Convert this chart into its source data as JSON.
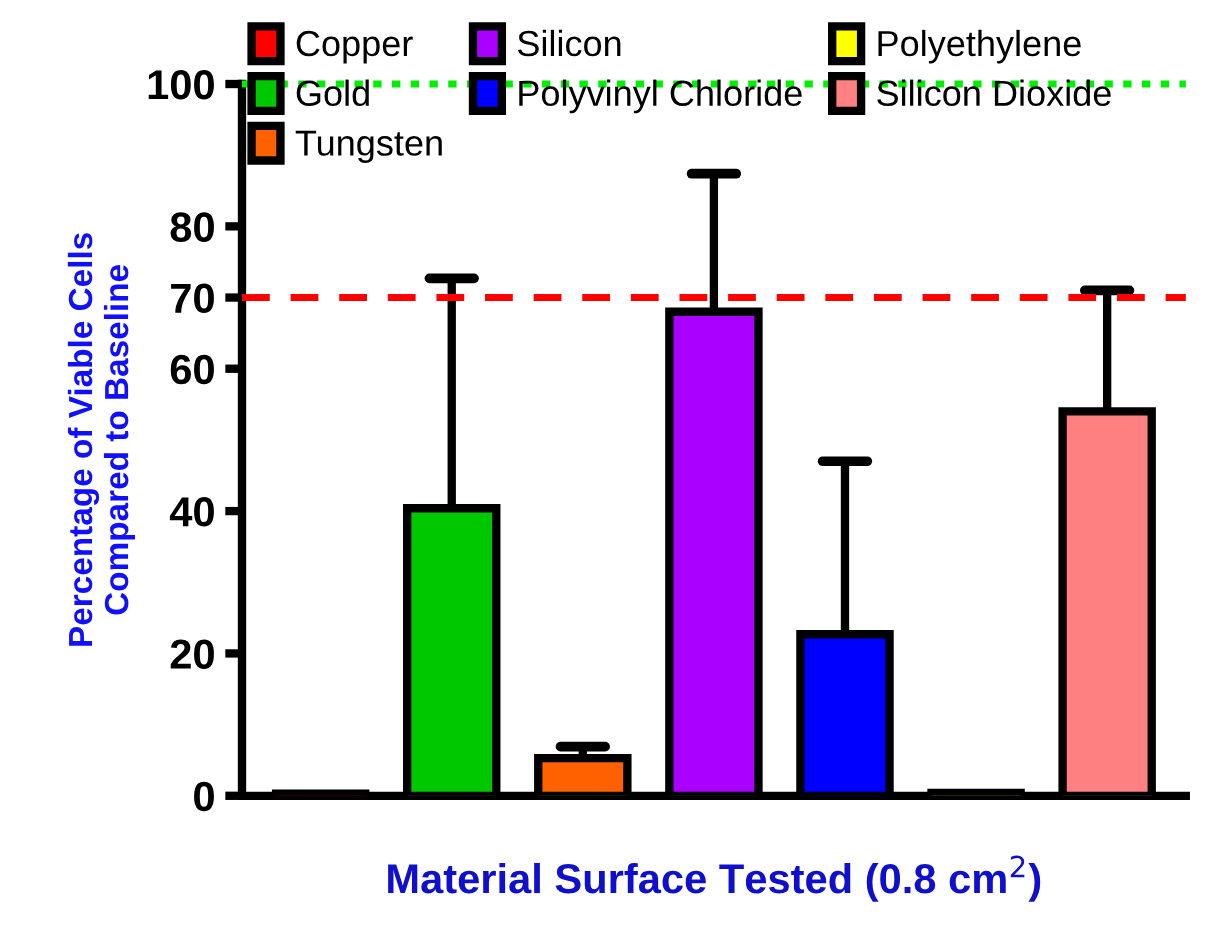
{
  "chart_data": {
    "type": "bar",
    "categories": [
      null,
      null,
      null,
      null,
      null,
      null,
      null
    ],
    "xlabel": "Material Surface Tested (0.8 cm$^{2}$)",
    "ylabel": "Percentage of Viable Cells\nCompared to Baseline",
    "ylim": [
      0,
      100
    ],
    "yticks": [
      0,
      20,
      40,
      60,
      70,
      80,
      100
    ],
    "series": [
      {
        "name": "Copper",
        "color": "#ff0000",
        "values": [
          0.3,
          null,
          null,
          null,
          null,
          null,
          null
        ],
        "errors": [
          null,
          null,
          null,
          null,
          null,
          null,
          null
        ]
      },
      {
        "name": "Gold",
        "color": "#00c800",
        "values": [
          null,
          40.4,
          null,
          null,
          null,
          null,
          null
        ],
        "errors": [
          null,
          [
            40.4,
            72.7
          ],
          null,
          null,
          null,
          null,
          null
        ]
      },
      {
        "name": "Tungsten",
        "color": "#ff6000",
        "values": [
          null,
          null,
          5.3,
          null,
          null,
          null,
          null
        ],
        "errors": [
          null,
          null,
          [
            5.3,
            6.9
          ],
          null,
          null,
          null,
          null
        ]
      },
      {
        "name": "Silicon",
        "color": "#aa00ff",
        "values": [
          null,
          null,
          null,
          68,
          null,
          null,
          null
        ],
        "errors": [
          null,
          null,
          null,
          [
            68,
            87.4
          ],
          null,
          null,
          null
        ]
      },
      {
        "name": "Polyvinyl Chloride",
        "color": "#0000ff",
        "values": [
          null,
          null,
          null,
          null,
          22.7,
          null,
          null
        ],
        "errors": [
          null,
          null,
          null,
          null,
          [
            22.7,
            47
          ],
          null,
          null
        ]
      },
      {
        "name": "Polyethylene",
        "color": "#ffff00",
        "values": [
          null,
          null,
          null,
          null,
          null,
          0.4,
          null
        ],
        "errors": [
          null,
          null,
          null,
          null,
          null,
          null,
          null
        ]
      },
      {
        "name": "Silicon Dioxide",
        "color": "#ff8080",
        "values": [
          null,
          null,
          null,
          null,
          null,
          null,
          54
        ],
        "errors": [
          null,
          null,
          null,
          null,
          null,
          null,
          [
            54,
            71
          ]
        ]
      }
    ],
    "ref_lines": [
      {
        "axis": "y",
        "value": 100,
        "color": "#00ee00",
        "line_style": "dotted"
      },
      {
        "axis": "y",
        "value": 70,
        "color": "#ff0000",
        "line_style": "dashed"
      }
    ],
    "legend": "top",
    "grid": false
  }
}
